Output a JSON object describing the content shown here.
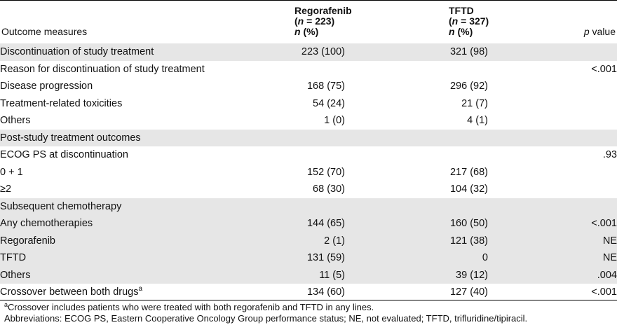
{
  "header": {
    "col1": "Outcome measures",
    "col2": {
      "line1": "Regorafenib",
      "n_symbol": "n",
      "n_eq": " = 223)",
      "n_open": "(",
      "line3_italic": "n",
      "line3_rest": " (%)"
    },
    "col3": {
      "line1": "TFTD",
      "n_symbol": "n",
      "n_eq": " = 327)",
      "n_open": "(",
      "line3_italic": "n",
      "line3_rest": " (%)"
    },
    "col4": {
      "italic": "p",
      "rest": " value"
    }
  },
  "rows": [
    {
      "label": "Discontinuation of study treatment",
      "reg": "223 (100)",
      "tftd": "321 (98)",
      "p": ""
    },
    {
      "label": "Reason for discontinuation of study treatment",
      "reg": "",
      "tftd": "",
      "p": "<.001"
    },
    {
      "label": "Disease progression",
      "reg": "168 (75)",
      "tftd": "296 (92)",
      "p": ""
    },
    {
      "label": "Treatment-related toxicities",
      "reg": "54 (24)",
      "tftd": "21 (7)",
      "p": ""
    },
    {
      "label": "Others",
      "reg": "1 (0)",
      "tftd": "4 (1)",
      "p": ""
    },
    {
      "label": "Post-study treatment outcomes",
      "reg": "",
      "tftd": "",
      "p": ""
    },
    {
      "label": "ECOG PS at discontinuation",
      "reg": "",
      "tftd": "",
      "p": ".93"
    },
    {
      "label": "0 + 1",
      "reg": "152 (70)",
      "tftd": "217 (68)",
      "p": ""
    },
    {
      "label": "≥2",
      "reg": "68 (30)",
      "tftd": "104 (32)",
      "p": ""
    },
    {
      "label": "Subsequent chemotherapy",
      "reg": "",
      "tftd": "",
      "p": ""
    },
    {
      "label": "Any chemotherapies",
      "reg": "144 (65)",
      "tftd": "160 (50)",
      "p": "<.001"
    },
    {
      "label": "Regorafenib",
      "reg": "2 (1)",
      "tftd": "121 (38)",
      "p": "NE"
    },
    {
      "label": "TFTD",
      "reg": "131 (59)",
      "tftd": "0",
      "p": "NE"
    },
    {
      "label": "Others",
      "reg": "11 (5)",
      "tftd": "39 (12)",
      "p": ".004"
    },
    {
      "label": "Crossover between both drugs",
      "label_sup": "a",
      "reg": "134 (60)",
      "tftd": "127 (40)",
      "p": "<.001"
    }
  ],
  "footnotes": {
    "crossover_sup": "a",
    "crossover": "Crossover includes patients who were treated with both regorafenib and TFTD in any lines.",
    "abbreviations": "Abbreviations: ECOG PS, Eastern Cooperative Oncology Group performance status; NE, not evaluated; TFTD, trifluridine/tipiracil."
  }
}
